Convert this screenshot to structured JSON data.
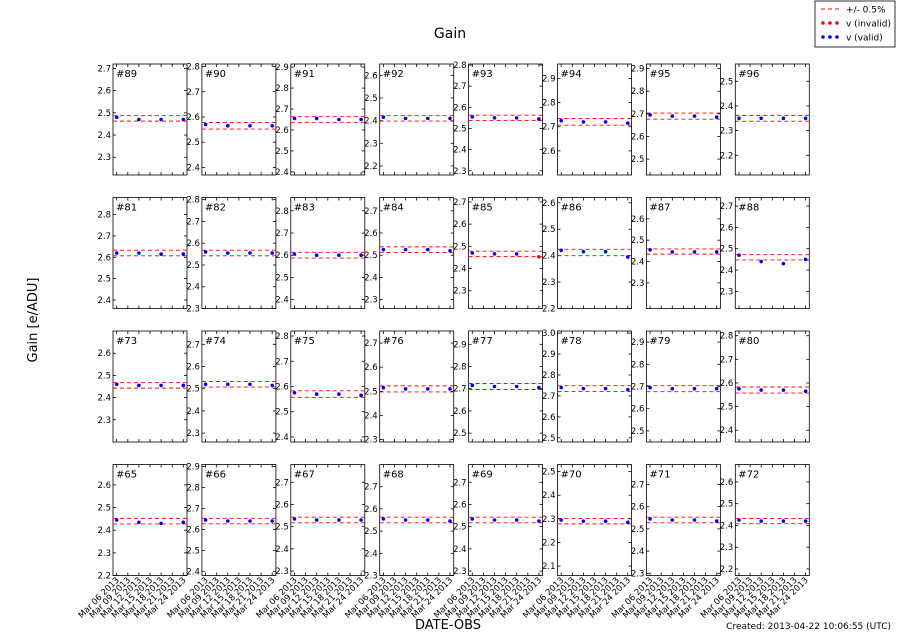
{
  "chart_data": {
    "type": "scatter",
    "title": "Gain",
    "y_label": "Gain [e/ADU]",
    "x_label": "DATE-OBS",
    "note": "Created: 2013-04-22 10:06:55 (UTC)",
    "legend": [
      {
        "name": "+/- 0.5%",
        "color": "#ff0000"
      },
      {
        "name": "v (invalid)",
        "color": "#ff0000"
      },
      {
        "name": "v (valid)",
        "color": "#0000ff"
      }
    ],
    "band_percent": 0.5,
    "x": [
      "Mar 06 2013",
      "Mar 12 2013",
      "Mar 18 2013",
      "Mar 24 2013"
    ],
    "xlim": [
      "Mar 05 2013",
      "Mar 25 2013"
    ],
    "xticks": [
      "Mar 06 2013",
      "Mar 09 2013",
      "Mar 12 2013",
      "Mar 15 2013",
      "Mar 18 2013",
      "Mar 21 2013",
      "Mar 24 2013"
    ],
    "panels": [
      {
        "label": "#89",
        "ylim": [
          2.22,
          2.72
        ],
        "yticks": [
          2.3,
          2.4,
          2.5,
          2.6,
          2.7
        ],
        "reference": 2.475,
        "valid": [
          2.48,
          2.47,
          2.47,
          2.47
        ],
        "invalid": [
          null,
          null,
          null,
          null
        ]
      },
      {
        "label": "#90",
        "ylim": [
          2.37,
          2.81
        ],
        "yticks": [
          2.4,
          2.5,
          2.6,
          2.7,
          2.8
        ],
        "reference": 2.565,
        "valid": [
          2.57,
          2.565,
          2.565,
          2.565
        ],
        "invalid": [
          null,
          null,
          null,
          null
        ]
      },
      {
        "label": "#91",
        "ylim": [
          2.385,
          2.915
        ],
        "yticks": [
          2.4,
          2.5,
          2.6,
          2.7,
          2.8,
          2.9
        ],
        "reference": 2.65,
        "valid": [
          2.655,
          2.655,
          2.65,
          2.65
        ],
        "invalid": [
          null,
          null,
          null,
          null
        ]
      },
      {
        "label": "#92",
        "ylim": [
          2.16,
          2.65
        ],
        "yticks": [
          2.2,
          2.3,
          2.4,
          2.5,
          2.6
        ],
        "reference": 2.41,
        "valid": [
          2.415,
          2.41,
          2.41,
          2.41
        ],
        "invalid": [
          null,
          null,
          null,
          null
        ]
      },
      {
        "label": "#93",
        "ylim": [
          2.28,
          2.805
        ],
        "yticks": [
          2.3,
          2.4,
          2.5,
          2.6,
          2.7,
          2.8
        ],
        "reference": 2.55,
        "valid": [
          2.555,
          2.55,
          2.55,
          2.545
        ],
        "invalid": [
          null,
          null,
          null,
          null
        ]
      },
      {
        "label": "#94",
        "ylim": [
          2.5,
          2.96
        ],
        "yticks": [
          2.6,
          2.7,
          2.8,
          2.9
        ],
        "reference": 2.72,
        "valid": [
          2.725,
          2.72,
          2.72,
          2.715
        ],
        "invalid": [
          null,
          null,
          null,
          null
        ]
      },
      {
        "label": "#95",
        "ylim": [
          2.43,
          2.92
        ],
        "yticks": [
          2.5,
          2.6,
          2.7,
          2.8,
          2.9
        ],
        "reference": 2.69,
        "valid": [
          2.695,
          2.69,
          2.69,
          2.685
        ],
        "invalid": [
          null,
          null,
          null,
          null
        ]
      },
      {
        "label": "#96",
        "ylim": [
          2.12,
          2.57
        ],
        "yticks": [
          2.2,
          2.3,
          2.4,
          2.5
        ],
        "reference": 2.35,
        "valid": [
          2.35,
          2.35,
          2.35,
          2.35
        ],
        "invalid": [
          null,
          null,
          null,
          null
        ]
      },
      {
        "label": "#81",
        "ylim": [
          2.36,
          2.88
        ],
        "yticks": [
          2.4,
          2.5,
          2.6,
          2.7,
          2.8
        ],
        "reference": 2.62,
        "valid": [
          2.62,
          2.62,
          2.615,
          2.615
        ],
        "invalid": [
          null,
          null,
          null,
          null
        ]
      },
      {
        "label": "#82",
        "ylim": [
          2.3,
          2.81
        ],
        "yticks": [
          2.3,
          2.4,
          2.5,
          2.6,
          2.7,
          2.8
        ],
        "reference": 2.555,
        "valid": [
          2.56,
          2.555,
          2.555,
          2.555
        ],
        "invalid": [
          null,
          null,
          null,
          null
        ]
      },
      {
        "label": "#83",
        "ylim": [
          2.36,
          2.86
        ],
        "yticks": [
          2.4,
          2.5,
          2.6,
          2.7,
          2.8
        ],
        "reference": 2.6,
        "valid": [
          2.605,
          2.6,
          2.6,
          2.6
        ],
        "invalid": [
          null,
          null,
          null,
          null
        ]
      },
      {
        "label": "#84",
        "ylim": [
          2.26,
          2.76
        ],
        "yticks": [
          2.3,
          2.4,
          2.5,
          2.6,
          2.7
        ],
        "reference": 2.525,
        "valid": [
          2.525,
          2.525,
          2.525,
          2.52
        ],
        "invalid": [
          null,
          null,
          null,
          null
        ]
      },
      {
        "label": "#85",
        "ylim": [
          2.22,
          2.72
        ],
        "yticks": [
          2.3,
          2.4,
          2.5,
          2.6,
          2.7
        ],
        "reference": 2.466,
        "valid": [
          2.47,
          2.466,
          2.466,
          null
        ],
        "invalid": [
          null,
          null,
          null,
          2.453
        ]
      },
      {
        "label": "#86",
        "ylim": [
          2.2,
          2.62
        ],
        "yticks": [
          2.2,
          2.3,
          2.4,
          2.5,
          2.6
        ],
        "reference": 2.412,
        "valid": [
          2.42,
          2.415,
          2.415,
          2.395
        ],
        "invalid": [
          null,
          null,
          null,
          null
        ]
      },
      {
        "label": "#87",
        "ylim": [
          2.18,
          2.7
        ],
        "yticks": [
          2.3,
          2.4,
          2.5,
          2.6
        ],
        "reference": 2.447,
        "valid": [
          2.455,
          2.445,
          2.445,
          2.445
        ],
        "invalid": [
          null,
          null,
          null,
          null
        ]
      },
      {
        "label": "#88",
        "ylim": [
          2.22,
          2.74
        ],
        "yticks": [
          2.3,
          2.4,
          2.5,
          2.6,
          2.7
        ],
        "reference": 2.46,
        "valid": [
          2.47,
          2.44,
          2.43,
          2.45
        ],
        "invalid": [
          null,
          null,
          null,
          null
        ]
      },
      {
        "label": "#73",
        "ylim": [
          2.2,
          2.7
        ],
        "yticks": [
          2.3,
          2.4,
          2.5,
          2.6
        ],
        "reference": 2.455,
        "valid": [
          2.46,
          2.455,
          2.455,
          2.455
        ],
        "invalid": [
          null,
          null,
          null,
          null
        ]
      },
      {
        "label": "#74",
        "ylim": [
          2.26,
          2.76
        ],
        "yticks": [
          2.3,
          2.4,
          2.5,
          2.6,
          2.7
        ],
        "reference": 2.52,
        "valid": [
          2.52,
          2.52,
          2.52,
          2.515
        ],
        "invalid": [
          null,
          null,
          null,
          null
        ]
      },
      {
        "label": "#75",
        "ylim": [
          2.38,
          2.82
        ],
        "yticks": [
          2.4,
          2.5,
          2.6,
          2.7,
          2.8
        ],
        "reference": 2.57,
        "valid": [
          2.575,
          2.57,
          2.57,
          2.565
        ],
        "invalid": [
          null,
          null,
          null,
          null
        ]
      },
      {
        "label": "#76",
        "ylim": [
          2.29,
          2.75
        ],
        "yticks": [
          2.3,
          2.4,
          2.5,
          2.6,
          2.7
        ],
        "reference": 2.51,
        "valid": [
          2.515,
          2.51,
          2.51,
          2.51
        ],
        "invalid": [
          null,
          null,
          null,
          null
        ]
      },
      {
        "label": "#77",
        "ylim": [
          2.46,
          2.96
        ],
        "yticks": [
          2.5,
          2.6,
          2.7,
          2.8,
          2.9
        ],
        "reference": 2.71,
        "valid": [
          2.715,
          2.71,
          2.71,
          2.705
        ],
        "invalid": [
          null,
          null,
          null,
          null
        ]
      },
      {
        "label": "#78",
        "ylim": [
          2.48,
          3.01
        ],
        "yticks": [
          2.5,
          2.6,
          2.7,
          2.8,
          2.9,
          {
            "value": 3.0,
            "label": "3.0"
          }
        ],
        "reference": 2.735,
        "valid": [
          2.74,
          2.735,
          2.735,
          2.73
        ],
        "invalid": [
          null,
          null,
          null,
          null
        ]
      },
      {
        "label": "#79",
        "ylim": [
          2.45,
          2.95
        ],
        "yticks": [
          2.5,
          2.6,
          2.7,
          2.8,
          2.9
        ],
        "reference": 2.69,
        "valid": [
          2.695,
          2.69,
          2.69,
          2.69
        ],
        "invalid": [
          null,
          null,
          null,
          null
        ]
      },
      {
        "label": "#80",
        "ylim": [
          2.35,
          2.82
        ],
        "yticks": [
          2.4,
          2.5,
          2.6,
          2.7,
          2.8
        ],
        "reference": 2.57,
        "valid": [
          2.575,
          2.57,
          2.57,
          2.565
        ],
        "invalid": [
          null,
          null,
          null,
          null
        ]
      },
      {
        "label": "#65",
        "ylim": [
          2.2,
          2.69
        ],
        "yticks": [
          2.2,
          2.3,
          2.4,
          2.5,
          2.6
        ],
        "reference": 2.44,
        "valid": [
          2.445,
          2.435,
          2.43,
          2.435
        ],
        "invalid": [
          null,
          null,
          null,
          null
        ]
      },
      {
        "label": "#66",
        "ylim": [
          2.38,
          2.91
        ],
        "yticks": [
          2.4,
          2.5,
          2.6,
          2.7,
          2.8,
          2.9
        ],
        "reference": 2.64,
        "valid": [
          2.645,
          2.64,
          2.64,
          2.64
        ],
        "invalid": [
          null,
          null,
          null,
          null
        ]
      },
      {
        "label": "#67",
        "ylim": [
          2.28,
          2.78
        ],
        "yticks": [
          2.3,
          2.4,
          2.5,
          2.6,
          2.7
        ],
        "reference": 2.53,
        "valid": [
          2.535,
          2.53,
          2.53,
          2.53
        ],
        "invalid": [
          null,
          null,
          null,
          null
        ]
      },
      {
        "label": "#68",
        "ylim": [
          2.3,
          2.8
        ],
        "yticks": [
          2.3,
          2.4,
          2.5,
          2.6,
          2.7
        ],
        "reference": 2.55,
        "valid": [
          2.555,
          2.55,
          2.55,
          2.545
        ],
        "invalid": [
          null,
          null,
          null,
          null
        ]
      },
      {
        "label": "#69",
        "ylim": [
          2.28,
          2.78
        ],
        "yticks": [
          2.3,
          2.4,
          2.5,
          2.6,
          2.7
        ],
        "reference": 2.53,
        "valid": [
          2.535,
          2.53,
          2.53,
          2.525
        ],
        "invalid": [
          null,
          null,
          null,
          null
        ]
      },
      {
        "label": "#70",
        "ylim": [
          2.06,
          2.53
        ],
        "yticks": [
          2.1,
          2.2,
          2.3,
          2.4,
          2.5
        ],
        "reference": 2.29,
        "valid": [
          2.295,
          2.29,
          2.29,
          2.285
        ],
        "invalid": [
          null,
          null,
          null,
          null
        ]
      },
      {
        "label": "#71",
        "ylim": [
          2.29,
          2.79
        ],
        "yticks": [
          2.3,
          2.4,
          2.5,
          2.6,
          2.7
        ],
        "reference": 2.54,
        "valid": [
          2.545,
          2.54,
          2.54,
          2.535
        ],
        "invalid": [
          null,
          null,
          null,
          null
        ]
      },
      {
        "label": "#72",
        "ylim": [
          2.17,
          2.68
        ],
        "yticks": [
          2.2,
          2.3,
          2.4,
          2.5,
          2.6
        ],
        "reference": 2.42,
        "valid": [
          2.425,
          2.42,
          2.42,
          2.42
        ],
        "invalid": [
          null,
          null,
          null,
          null
        ]
      }
    ]
  }
}
